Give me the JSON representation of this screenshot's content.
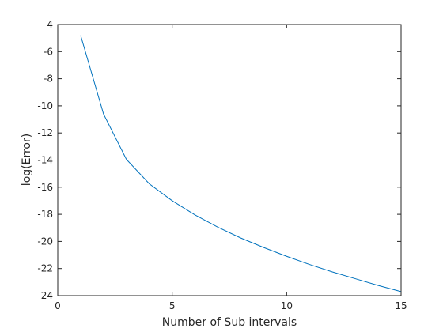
{
  "chart_data": {
    "type": "line",
    "title": "",
    "xlabel": "Number of Sub intervals",
    "ylabel": "log(Error)",
    "xlim": [
      0,
      15
    ],
    "ylim": [
      -24,
      -4
    ],
    "xticks": [
      0,
      5,
      10,
      15
    ],
    "yticks": [
      -24,
      -22,
      -20,
      -18,
      -16,
      -14,
      -12,
      -10,
      -8,
      -6,
      -4
    ],
    "grid": false,
    "series": [
      {
        "color": "#0072bd",
        "x": [
          1,
          2,
          3,
          4,
          5,
          6,
          7,
          8,
          9,
          10,
          11,
          12,
          13,
          14,
          15
        ],
        "y": [
          -4.8,
          -10.6,
          -13.95,
          -15.75,
          -17.0,
          -18.05,
          -18.95,
          -19.75,
          -20.45,
          -21.1,
          -21.7,
          -22.25,
          -22.75,
          -23.25,
          -23.7
        ]
      }
    ]
  }
}
